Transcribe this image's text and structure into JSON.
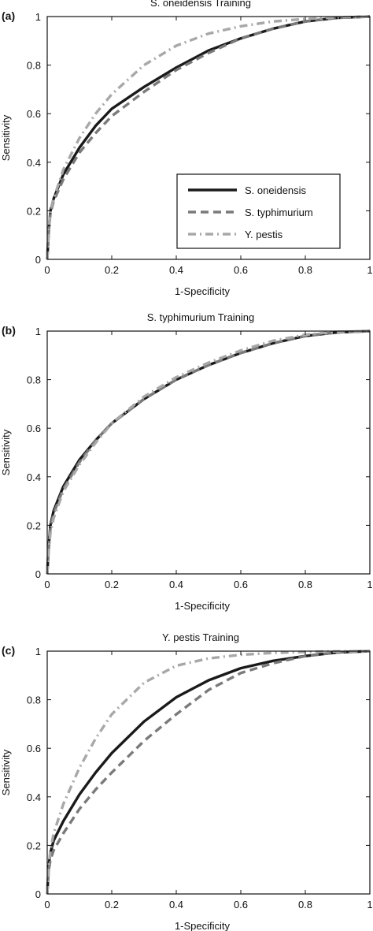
{
  "chart_data": [
    {
      "type": "line",
      "panel_label": "(a)",
      "title": "S. oneidensis Training",
      "xlabel": "1-Specificity",
      "ylabel": "Sensitivity",
      "xlim": [
        0,
        1
      ],
      "ylim": [
        0,
        1
      ],
      "xticks": [
        "0",
        "0.2",
        "0.4",
        "0.6",
        "0.8",
        "1"
      ],
      "yticks": [
        "0",
        "0.2",
        "0.4",
        "0.6",
        "0.8",
        "1"
      ],
      "grid": false,
      "legend": "lower-right",
      "show_legend": true,
      "series": [
        {
          "name": "S. oneidensis",
          "x": [
            0,
            0.005,
            0.01,
            0.02,
            0.05,
            0.1,
            0.15,
            0.2,
            0.3,
            0.4,
            0.5,
            0.6,
            0.7,
            0.8,
            0.9,
            1.0
          ],
          "y": [
            0,
            0.12,
            0.2,
            0.25,
            0.35,
            0.46,
            0.55,
            0.62,
            0.71,
            0.79,
            0.86,
            0.91,
            0.95,
            0.98,
            0.995,
            1.0
          ]
        },
        {
          "name": "S. typhimurium",
          "x": [
            0,
            0.005,
            0.01,
            0.02,
            0.05,
            0.1,
            0.15,
            0.2,
            0.3,
            0.4,
            0.5,
            0.6,
            0.7,
            0.8,
            0.9,
            1.0
          ],
          "y": [
            0,
            0.12,
            0.19,
            0.24,
            0.33,
            0.44,
            0.52,
            0.59,
            0.69,
            0.78,
            0.85,
            0.91,
            0.95,
            0.98,
            0.995,
            1.0
          ]
        },
        {
          "name": "Y. pestis",
          "x": [
            0,
            0.005,
            0.01,
            0.02,
            0.05,
            0.1,
            0.15,
            0.2,
            0.3,
            0.4,
            0.5,
            0.6,
            0.7,
            0.8,
            0.9,
            1.0
          ],
          "y": [
            0,
            0.12,
            0.2,
            0.25,
            0.37,
            0.5,
            0.6,
            0.68,
            0.8,
            0.88,
            0.93,
            0.96,
            0.98,
            0.99,
            0.997,
            1.0
          ]
        }
      ]
    },
    {
      "type": "line",
      "panel_label": "(b)",
      "title": "S. typhimurium Training",
      "xlabel": "1-Specificity",
      "ylabel": "Sensitivity",
      "xlim": [
        0,
        1
      ],
      "ylim": [
        0,
        1
      ],
      "xticks": [
        "0",
        "0.2",
        "0.4",
        "0.6",
        "0.8",
        "1"
      ],
      "yticks": [
        "0",
        "0.2",
        "0.4",
        "0.6",
        "0.8",
        "1"
      ],
      "grid": false,
      "show_legend": false,
      "series": [
        {
          "name": "S. oneidensis",
          "x": [
            0,
            0.005,
            0.01,
            0.02,
            0.05,
            0.1,
            0.15,
            0.2,
            0.3,
            0.4,
            0.5,
            0.6,
            0.7,
            0.8,
            0.9,
            1.0
          ],
          "y": [
            0,
            0.12,
            0.2,
            0.26,
            0.36,
            0.47,
            0.55,
            0.62,
            0.72,
            0.8,
            0.86,
            0.91,
            0.95,
            0.98,
            0.995,
            1.0
          ]
        },
        {
          "name": "S. typhimurium",
          "x": [
            0,
            0.005,
            0.01,
            0.02,
            0.05,
            0.1,
            0.15,
            0.2,
            0.3,
            0.4,
            0.5,
            0.6,
            0.7,
            0.8,
            0.9,
            1.0
          ],
          "y": [
            0,
            0.11,
            0.19,
            0.25,
            0.35,
            0.46,
            0.55,
            0.62,
            0.72,
            0.8,
            0.86,
            0.91,
            0.95,
            0.98,
            0.995,
            1.0
          ]
        },
        {
          "name": "Y. pestis",
          "x": [
            0,
            0.005,
            0.01,
            0.02,
            0.05,
            0.1,
            0.15,
            0.2,
            0.3,
            0.4,
            0.5,
            0.6,
            0.7,
            0.8,
            0.9,
            1.0
          ],
          "y": [
            0,
            0.1,
            0.17,
            0.23,
            0.34,
            0.45,
            0.54,
            0.62,
            0.73,
            0.81,
            0.87,
            0.92,
            0.96,
            0.985,
            0.997,
            1.0
          ]
        }
      ]
    },
    {
      "type": "line",
      "panel_label": "(c)",
      "title": "Y. pestis Training",
      "xlabel": "1-Specificity",
      "ylabel": "Sensitivity",
      "xlim": [
        0,
        1
      ],
      "ylim": [
        0,
        1
      ],
      "xticks": [
        "0",
        "0.2",
        "0.4",
        "0.6",
        "0.8",
        "1"
      ],
      "yticks": [
        "0",
        "0.2",
        "0.4",
        "0.6",
        "0.8",
        "1"
      ],
      "grid": false,
      "show_legend": false,
      "series": [
        {
          "name": "S. oneidensis",
          "x": [
            0,
            0.005,
            0.01,
            0.02,
            0.05,
            0.1,
            0.15,
            0.2,
            0.3,
            0.4,
            0.5,
            0.6,
            0.7,
            0.8,
            0.9,
            1.0
          ],
          "y": [
            0,
            0.12,
            0.17,
            0.22,
            0.3,
            0.41,
            0.5,
            0.58,
            0.71,
            0.81,
            0.88,
            0.93,
            0.96,
            0.98,
            0.995,
            1.0
          ]
        },
        {
          "name": "S. typhimurium",
          "x": [
            0,
            0.005,
            0.01,
            0.02,
            0.05,
            0.1,
            0.15,
            0.2,
            0.3,
            0.4,
            0.5,
            0.6,
            0.7,
            0.8,
            0.9,
            1.0
          ],
          "y": [
            0,
            0.1,
            0.14,
            0.18,
            0.25,
            0.35,
            0.43,
            0.5,
            0.63,
            0.74,
            0.84,
            0.91,
            0.95,
            0.98,
            0.995,
            1.0
          ]
        },
        {
          "name": "Y. pestis",
          "x": [
            0,
            0.005,
            0.01,
            0.02,
            0.05,
            0.1,
            0.15,
            0.2,
            0.3,
            0.4,
            0.5,
            0.6,
            0.7,
            0.8,
            0.9,
            1.0
          ],
          "y": [
            0,
            0.12,
            0.18,
            0.25,
            0.37,
            0.52,
            0.64,
            0.74,
            0.87,
            0.94,
            0.97,
            0.985,
            0.993,
            0.997,
            0.999,
            1.0
          ]
        }
      ]
    }
  ],
  "styles": {
    "S. oneidensis": {
      "color": "#1a1a1a",
      "line": "solid"
    },
    "S. typhimurium": {
      "color": "#7a7a7a",
      "line": "dashed"
    },
    "Y. pestis": {
      "color": "#a8a8a8",
      "line": "dash-dot"
    }
  }
}
